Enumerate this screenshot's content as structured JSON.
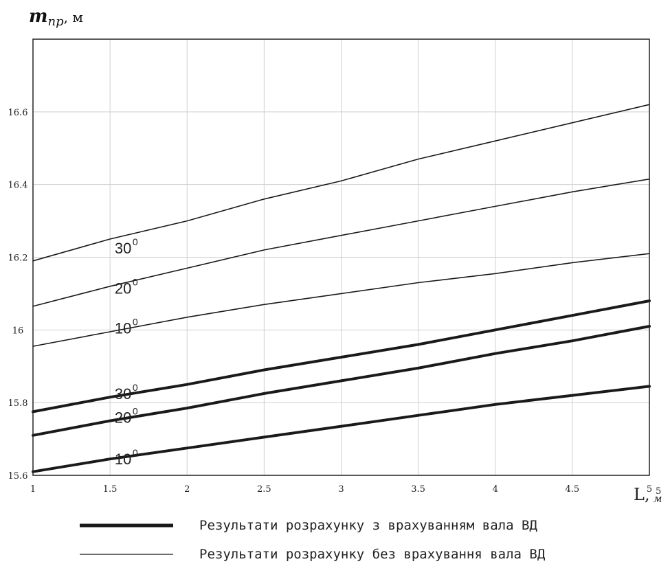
{
  "chart_data": {
    "type": "line",
    "ylabel": {
      "main": "m",
      "sub": "пр",
      "unit": ", м"
    },
    "xlabel": {
      "main": "L,",
      "unit": "м"
    },
    "xlim": [
      1,
      5
    ],
    "ylim": [
      15.6,
      16.8
    ],
    "grid": true,
    "x_ticks": [
      "1",
      "1.5",
      "2",
      "2.5",
      "3",
      "3.5",
      "4",
      "4.5",
      "5"
    ],
    "x_ticks_extra": "5",
    "y_ticks": [
      "15.6",
      "15.8",
      "16",
      "16.2",
      "16.4",
      "16.6"
    ],
    "series": [
      {
        "label": "30",
        "sup": "0",
        "style": "thin",
        "label_x": 1.53,
        "label_y": 16.21,
        "x": [
          1,
          1.5,
          2,
          2.5,
          3,
          3.5,
          4,
          4.5,
          5
        ],
        "y": [
          16.19,
          16.25,
          16.3,
          16.36,
          16.41,
          16.47,
          16.52,
          16.57,
          16.62
        ]
      },
      {
        "label": "20",
        "sup": "0",
        "style": "thin",
        "label_x": 1.53,
        "label_y": 16.1,
        "x": [
          1,
          1.5,
          2,
          2.5,
          3,
          3.5,
          4,
          4.5,
          5
        ],
        "y": [
          16.065,
          16.12,
          16.17,
          16.22,
          16.26,
          16.3,
          16.34,
          16.38,
          16.415
        ]
      },
      {
        "label": "10",
        "sup": "0",
        "style": "thin",
        "label_x": 1.53,
        "label_y": 15.99,
        "x": [
          1,
          1.5,
          2,
          2.5,
          3,
          3.5,
          4,
          4.5,
          5
        ],
        "y": [
          15.955,
          15.995,
          16.035,
          16.07,
          16.1,
          16.13,
          16.155,
          16.185,
          16.21
        ]
      },
      {
        "label": "30",
        "sup": "0",
        "style": "thick",
        "label_x": 1.53,
        "label_y": 15.81,
        "x": [
          1,
          1.5,
          2,
          2.5,
          3,
          3.5,
          4,
          4.5,
          5
        ],
        "y": [
          15.775,
          15.815,
          15.85,
          15.89,
          15.925,
          15.96,
          16.0,
          16.04,
          16.08
        ]
      },
      {
        "label": "20",
        "sup": "0",
        "style": "thick",
        "label_x": 1.53,
        "label_y": 15.745,
        "x": [
          1,
          1.5,
          2,
          2.5,
          3,
          3.5,
          4,
          4.5,
          5
        ],
        "y": [
          15.71,
          15.75,
          15.785,
          15.825,
          15.86,
          15.895,
          15.935,
          15.97,
          16.01
        ]
      },
      {
        "label": "10",
        "sup": "0",
        "style": "thick",
        "label_x": 1.53,
        "label_y": 15.63,
        "x": [
          1,
          1.5,
          2,
          2.5,
          3,
          3.5,
          4,
          4.5,
          5
        ],
        "y": [
          15.61,
          15.645,
          15.675,
          15.705,
          15.735,
          15.765,
          15.795,
          15.82,
          15.845
        ]
      }
    ],
    "legend": [
      {
        "style": "thick",
        "text": "Результати розрахунку  з врахуванням вала ВД"
      },
      {
        "style": "thin",
        "text": "Результати розрахунку  без врахування вала ВД"
      }
    ]
  }
}
